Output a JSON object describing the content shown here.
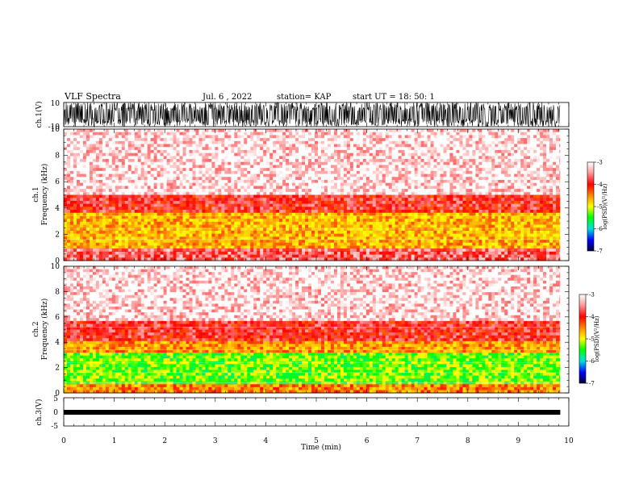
{
  "header": {
    "title": "VLF Spectra",
    "date": "Jul. 6 , 2022",
    "station": "station= KAP",
    "start": "start UT = 18: 50: 1"
  },
  "chart_data": [
    {
      "type": "line",
      "ylabel": "ch.1(V)",
      "ylim": [
        -10,
        10
      ],
      "y_ticks": [
        "10",
        "-10"
      ],
      "xlim": [
        0,
        10
      ],
      "description_only": false
    },
    {
      "type": "heatmap",
      "ylabel_line1": "ch.1",
      "ylabel_line2": "Frequency (kHz)",
      "ylim": [
        0,
        10
      ],
      "y_ticks": [
        "0",
        "2",
        "4",
        "6",
        "8",
        "10"
      ],
      "xlim": [
        0,
        10
      ],
      "colorbar": {
        "label": "log(PSD)(V²/Hz)",
        "ticks": [
          "-3",
          "-4",
          "-5",
          "-6",
          "-7"
        ],
        "range": [
          -7,
          -3
        ]
      },
      "bands": [
        {
          "fmin": 0,
          "fmax": 0.8,
          "level": -3.6
        },
        {
          "fmin": 0.8,
          "fmax": 3.6,
          "level": -4.6
        },
        {
          "fmin": 3.6,
          "fmax": 5.0,
          "level": -3.8
        },
        {
          "fmin": 5.0,
          "fmax": 10,
          "level": -3.1
        }
      ]
    },
    {
      "type": "heatmap",
      "ylabel_line1": "ch.2",
      "ylabel_line2": "Frequency (kHz)",
      "ylim": [
        0,
        10
      ],
      "y_ticks": [
        "0",
        "2",
        "4",
        "6",
        "8",
        "10"
      ],
      "xlim": [
        0,
        10
      ],
      "colorbar": {
        "label": "log(PSD)(V²/Hz)",
        "ticks": [
          "-3",
          "-4",
          "-5",
          "-6",
          "-7"
        ],
        "range": [
          -7,
          -3
        ]
      },
      "bands": [
        {
          "fmin": 0,
          "fmax": 0.6,
          "level": -4.4
        },
        {
          "fmin": 0.6,
          "fmax": 3.2,
          "level": -5.3
        },
        {
          "fmin": 3.2,
          "fmax": 4.2,
          "level": -4.5
        },
        {
          "fmin": 4.2,
          "fmax": 5.6,
          "level": -3.8
        },
        {
          "fmin": 5.6,
          "fmax": 10,
          "level": -3.1
        }
      ]
    },
    {
      "type": "line",
      "ylabel": "ch.3(V)",
      "ylim": [
        -5,
        5
      ],
      "y_ticks": [
        "5",
        "0",
        "-5"
      ],
      "xlim": [
        0,
        10
      ],
      "xlabel": "Time (min)",
      "x_ticks": [
        "0",
        "1",
        "2",
        "3",
        "4",
        "5",
        "6",
        "7",
        "8",
        "9",
        "10"
      ],
      "data_end_min": 9.83
    }
  ]
}
